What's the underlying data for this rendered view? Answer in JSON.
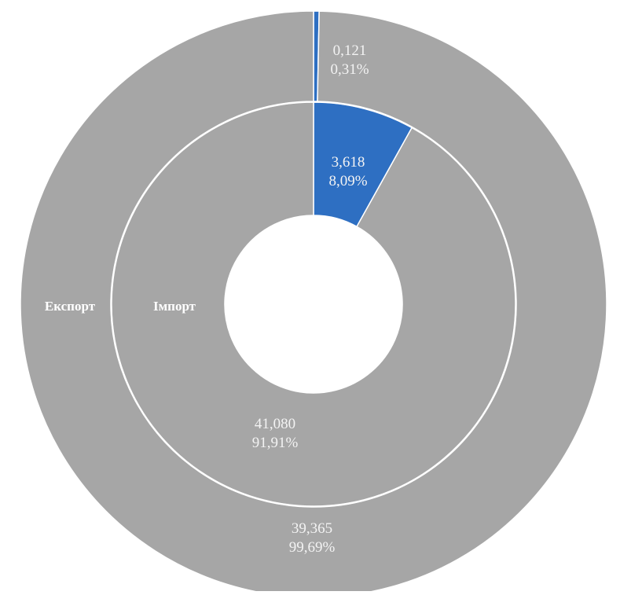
{
  "chart_data": {
    "type": "donut",
    "rings": [
      {
        "name": "Експорт",
        "position": "outer",
        "values": [
          0.121,
          39.365
        ],
        "percent_labels": [
          "0,31%",
          "99,69%"
        ],
        "value_labels": [
          "0,121",
          "39,365"
        ],
        "colors": [
          "#2e6fc2",
          "#a6a6a6"
        ]
      },
      {
        "name": "Імпорт",
        "position": "inner",
        "values": [
          3.618,
          41.08
        ],
        "percent_labels": [
          "8,09%",
          "91,91%"
        ],
        "value_labels": [
          "3,618",
          "41,080"
        ],
        "colors": [
          "#2e6fc2",
          "#a6a6a6"
        ]
      }
    ],
    "separator_color": "#ffffff",
    "label_color": "#f3f3f3",
    "start_angle": "top",
    "direction": "clockwise"
  }
}
